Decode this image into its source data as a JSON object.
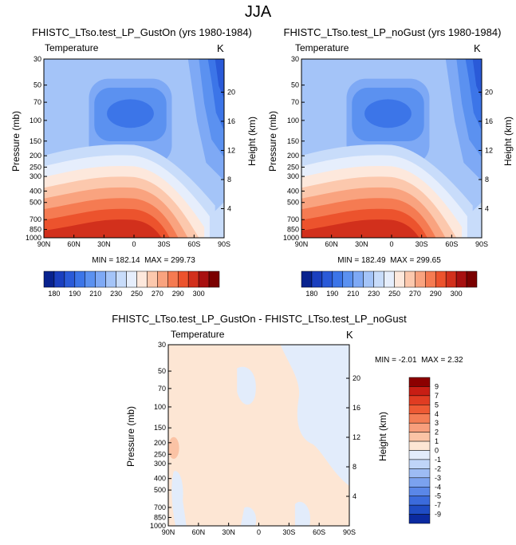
{
  "page": {
    "title": "JJA"
  },
  "chart_data": [
    {
      "type": "heatmap",
      "title": "FHISTC_LTso.test_LP_GustOn (yrs 1980-1984)",
      "variable": "Temperature",
      "units": "K",
      "xlabel": "",
      "ylabel": "Pressure (mb)",
      "y2label": "Height (km)",
      "x_ticks": [
        "90N",
        "60N",
        "30N",
        "0",
        "30S",
        "60S",
        "90S"
      ],
      "y_ticks": [
        30,
        50,
        70,
        100,
        150,
        200,
        250,
        300,
        400,
        500,
        700,
        850,
        1000
      ],
      "y2_ticks": [
        20,
        16,
        12,
        8,
        4
      ],
      "min_label": "MIN = 182.14",
      "max_label": "MAX = 299.73",
      "colorbar_labels": [
        "180",
        "190",
        "210",
        "230",
        "250",
        "270",
        "290",
        "300"
      ],
      "colors": [
        "#08228e",
        "#1a3fbf",
        "#2a5ad8",
        "#3c75e8",
        "#5b91f0",
        "#7ea9f5",
        "#a4c4f8",
        "#c8dcfa",
        "#e6eefc",
        "#fde8dc",
        "#fcc8ad",
        "#f9a37f",
        "#f57b52",
        "#ec532d",
        "#d2301c",
        "#a81010",
        "#7a0000"
      ],
      "y_range_mb": [
        30,
        1000
      ],
      "log_pressure": true
    },
    {
      "type": "heatmap",
      "title": "FHISTC_LTso.test_LP_noGust (yrs 1980-1984)",
      "variable": "Temperature",
      "units": "K",
      "xlabel": "",
      "ylabel": "Pressure (mb)",
      "y2label": "Height (km)",
      "x_ticks": [
        "90N",
        "60N",
        "30N",
        "0",
        "30S",
        "60S",
        "90S"
      ],
      "y_ticks": [
        30,
        50,
        70,
        100,
        150,
        200,
        250,
        300,
        400,
        500,
        700,
        850,
        1000
      ],
      "y2_ticks": [
        20,
        16,
        12,
        8,
        4
      ],
      "min_label": "MIN = 182.49",
      "max_label": "MAX = 299.65",
      "colorbar_labels": [
        "180",
        "190",
        "210",
        "230",
        "250",
        "270",
        "290",
        "300"
      ],
      "y_range_mb": [
        30,
        1000
      ],
      "log_pressure": true
    },
    {
      "type": "heatmap",
      "title": "FHISTC_LTso.test_LP_GustOn - FHISTC_LTso.test_LP_noGust",
      "variable": "Temperature",
      "units": "K",
      "xlabel": "",
      "ylabel": "Pressure (mb)",
      "y2label": "Height (km)",
      "x_ticks": [
        "90N",
        "60N",
        "30N",
        "0",
        "30S",
        "60S",
        "90S"
      ],
      "y_ticks": [
        30,
        50,
        70,
        100,
        150,
        200,
        250,
        300,
        400,
        500,
        700,
        850,
        1000
      ],
      "y2_ticks": [
        20,
        16,
        12,
        8,
        4
      ],
      "min_label": "MIN =  -2.01",
      "max_label": "MAX =   2.32",
      "colorbar_labels": [
        "9",
        "7",
        "5",
        "4",
        "3",
        "2",
        "1",
        "0",
        "-1",
        "-2",
        "-3",
        "-4",
        "-5",
        "-7",
        "-9"
      ],
      "diff_colors": [
        "#8c0000",
        "#c81e14",
        "#e03c22",
        "#ee5a34",
        "#f47d55",
        "#f89e7c",
        "#fbc3a5",
        "#fde6d4",
        "#e2ecfb",
        "#bfd5f8",
        "#9dbcf4",
        "#7ba2ef",
        "#5a87e8",
        "#3b6bdc",
        "#1f4cc4",
        "#0b2aa0"
      ],
      "y_range_mb": [
        30,
        1000
      ],
      "log_pressure": true
    }
  ]
}
